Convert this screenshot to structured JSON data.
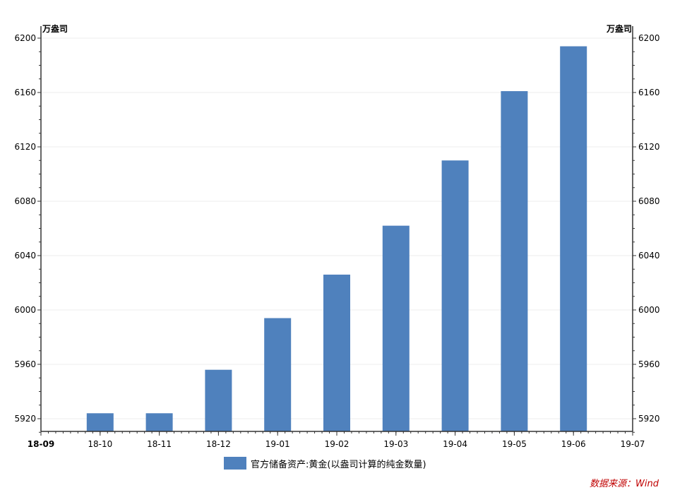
{
  "chart_data": {
    "type": "bar",
    "y_unit_left": "万盎司",
    "y_unit_right": "万盎司",
    "x_ticks": [
      "18-09",
      "18-10",
      "18-11",
      "18-12",
      "19-01",
      "19-02",
      "19-03",
      "19-04",
      "19-05",
      "19-06",
      "19-07"
    ],
    "categories": [
      "18-10",
      "18-11",
      "18-12",
      "19-01",
      "19-02",
      "19-03",
      "19-04",
      "19-05",
      "19-06"
    ],
    "series": [
      {
        "name": "官方储备资产:黄金(以盎司计算的纯金数量)",
        "color": "#4f81bd",
        "values": [
          5924,
          5924,
          5956,
          5994,
          6026,
          6062,
          6110,
          6161,
          6194
        ]
      }
    ],
    "ylim": [
      5910,
      6200
    ],
    "yticks": [
      5920,
      5960,
      6000,
      6040,
      6080,
      6120,
      6160,
      6200
    ],
    "grid": true,
    "legend_position": "bottom-center",
    "source": "数据来源：Wind"
  }
}
